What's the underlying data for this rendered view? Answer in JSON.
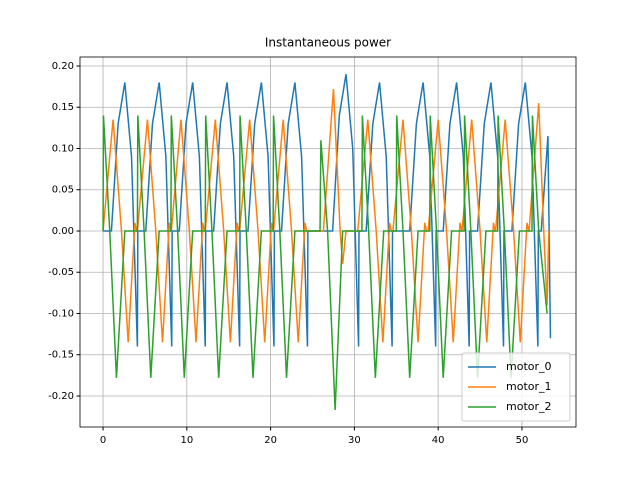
{
  "chart_data": {
    "type": "line",
    "title": "Instantaneous power",
    "xlim": [
      -2.75,
      56.45
    ],
    "ylim": [
      -0.2376,
      0.2109
    ],
    "xticks": [
      0,
      10,
      20,
      30,
      40,
      50
    ],
    "yticks": [
      {
        "value": -0.2,
        "label": "-0.20"
      },
      {
        "value": -0.15,
        "label": "-0.15"
      },
      {
        "value": -0.1,
        "label": "-0.10"
      },
      {
        "value": -0.05,
        "label": "-0.05"
      },
      {
        "value": 0,
        "label": "0.00"
      },
      {
        "value": 0.05,
        "label": "0.05"
      },
      {
        "value": 0.1,
        "label": "0.10"
      },
      {
        "value": 0.15,
        "label": "0.15"
      },
      {
        "value": 0.2,
        "label": "0.20"
      }
    ],
    "grid": true,
    "legend": "lower right",
    "series": [
      {
        "name": "motor_0",
        "color": "#1f77b4",
        "x": [
          0,
          1.0,
          1.8,
          2.6,
          3.4,
          4.1,
          4.15,
          5.1,
          5.9,
          6.7,
          7.5,
          8.2,
          8.25,
          9.1,
          9.9,
          10.7,
          11.5,
          12.2,
          12.25,
          13.2,
          14.0,
          14.8,
          15.6,
          16.3,
          16.35,
          17.3,
          18.1,
          18.9,
          19.7,
          20.4,
          20.45,
          21.3,
          22.1,
          22.9,
          23.7,
          24.4,
          24.45,
          27.4,
          28.2,
          29.0,
          29.8,
          30.5,
          30.55,
          31.4,
          32.2,
          33.0,
          33.8,
          34.5,
          34.55,
          36.6,
          37.4,
          38.2,
          39.0,
          39.7,
          39.75,
          40.6,
          41.4,
          42.2,
          43.0,
          43.7,
          43.75,
          44.7,
          45.5,
          46.3,
          47.1,
          47.8,
          47.85,
          48.8,
          49.6,
          50.4,
          51.2,
          51.9,
          51.95,
          52.3,
          53.1,
          53.4
        ],
        "values": [
          0,
          0,
          0.13,
          0.18,
          0.09,
          -0.14,
          0,
          0,
          0.13,
          0.18,
          0.09,
          -0.14,
          0,
          0,
          0.13,
          0.18,
          0.09,
          -0.14,
          0,
          0,
          0.13,
          0.18,
          0.09,
          -0.14,
          0,
          0,
          0.13,
          0.18,
          0.09,
          -0.14,
          0,
          0,
          0.13,
          0.18,
          0.09,
          -0.14,
          0,
          0,
          0.14,
          0.19,
          0.1,
          -0.14,
          0,
          0,
          0.13,
          0.18,
          0.09,
          -0.14,
          0,
          0,
          0.13,
          0.18,
          0.09,
          -0.14,
          0,
          0,
          0.13,
          0.18,
          0.09,
          -0.14,
          0,
          0,
          0.13,
          0.18,
          0.09,
          -0.14,
          0,
          0,
          0.13,
          0.18,
          0.09,
          -0.14,
          0,
          0,
          0.115,
          -0.13
        ]
      },
      {
        "name": "motor_1",
        "color": "#ff7f0e",
        "x": [
          0,
          1.2,
          2.2,
          3.0,
          3.8,
          4.0,
          4.1,
          5.3,
          6.3,
          7.1,
          7.9,
          8.1,
          8.15,
          9.3,
          10.3,
          11.1,
          11.9,
          12.1,
          12.2,
          13.4,
          14.4,
          15.2,
          16.0,
          16.2,
          16.3,
          17.5,
          18.5,
          19.3,
          20.1,
          20.3,
          20.35,
          21.5,
          22.5,
          23.3,
          24.1,
          24.3,
          26.3,
          27.5,
          28.3,
          28.6,
          29.0,
          30.4,
          31.6,
          32.6,
          33.4,
          34.2,
          34.4,
          34.6,
          35.8,
          36.8,
          37.6,
          38.4,
          38.6,
          38.8,
          40.0,
          41.0,
          41.8,
          42.6,
          42.8,
          42.85,
          44.0,
          45.0,
          45.8,
          46.6,
          46.8,
          46.85,
          48.0,
          49.0,
          49.8,
          50.6,
          50.8,
          50.85,
          52.0,
          52.6,
          53.0,
          53.2
        ],
        "values": [
          0,
          0.135,
          0,
          -0.135,
          0.01,
          0,
          0,
          0.135,
          0,
          -0.135,
          0.01,
          0,
          0,
          0.135,
          0,
          -0.135,
          0.01,
          0,
          0,
          0.135,
          0,
          -0.135,
          0.01,
          0,
          0,
          0.135,
          0,
          -0.135,
          0.01,
          0,
          0,
          0.135,
          0,
          -0.135,
          0.01,
          0,
          0,
          0.172,
          0,
          -0.04,
          0,
          0,
          0.135,
          0,
          -0.135,
          0.01,
          0,
          0,
          0.135,
          0,
          -0.135,
          0.01,
          0,
          0,
          0.135,
          0,
          -0.135,
          0.01,
          0,
          0,
          0.135,
          0,
          -0.135,
          0.01,
          0,
          0,
          0.135,
          0,
          -0.135,
          0.01,
          0,
          0,
          0.155,
          0,
          -0.09,
          0
        ]
      },
      {
        "name": "motor_2",
        "color": "#2ca02c",
        "x": [
          0,
          0.05,
          0.8,
          1.6,
          2.6,
          4.1,
          4.15,
          4.9,
          5.7,
          6.7,
          8.1,
          8.15,
          8.9,
          9.7,
          10.7,
          12.2,
          12.25,
          13.0,
          13.8,
          14.8,
          16.3,
          16.35,
          17.1,
          17.9,
          18.9,
          20.3,
          20.35,
          21.1,
          21.9,
          22.9,
          25.9,
          26.0,
          26.8,
          27.7,
          28.6,
          30.9,
          30.95,
          31.7,
          32.5,
          33.5,
          35.0,
          35.05,
          35.8,
          36.6,
          37.6,
          39.0,
          39.05,
          39.8,
          40.6,
          41.6,
          43.1,
          43.15,
          43.9,
          44.7,
          45.7,
          47.1,
          47.15,
          47.9,
          48.7,
          49.7,
          51.2,
          51.25,
          52.0,
          53.0
        ],
        "values": [
          0,
          0.14,
          0,
          -0.178,
          0,
          0,
          0.14,
          0,
          -0.178,
          0,
          0,
          0.14,
          0,
          -0.178,
          0,
          0,
          0.14,
          0,
          -0.178,
          0,
          0,
          0.14,
          0,
          -0.178,
          0,
          0,
          0.14,
          0,
          -0.178,
          0,
          0,
          0.11,
          0,
          -0.217,
          0,
          0,
          0.14,
          0,
          -0.178,
          0,
          0,
          0.14,
          0,
          -0.178,
          0,
          0,
          0.14,
          0,
          -0.178,
          0,
          0,
          0.14,
          0,
          -0.178,
          0,
          0,
          0.14,
          0,
          -0.178,
          0,
          0,
          0.14,
          0,
          -0.1
        ]
      }
    ]
  }
}
